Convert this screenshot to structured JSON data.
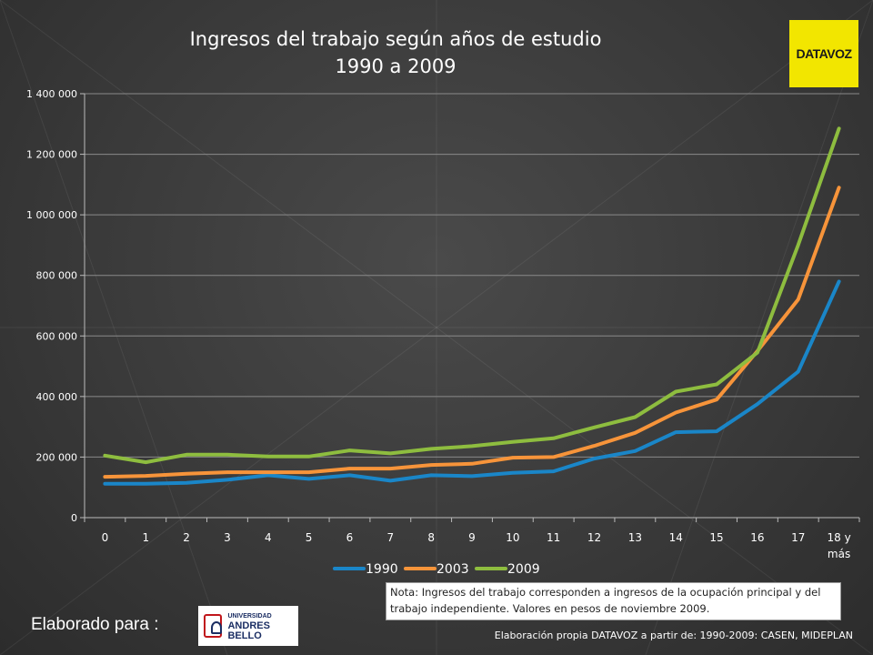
{
  "title": "Ingresos del trabajo según años de estudio",
  "subtitle": "1990 a 2009",
  "logo_text": "DATAVOZ",
  "note": "Nota: Ingresos del trabajo corresponden a ingresos de la ocupación principal y del trabajo independiente. Valores en pesos de noviembre 2009.",
  "made_for": "Elaborado para :",
  "university": {
    "line1": "UNIVERSIDAD",
    "line2": "ANDRES BELLO"
  },
  "source": "Elaboración propia DATAVOZ a partir de: 1990-2009: CASEN, MIDEPLAN",
  "chart_data": {
    "type": "line",
    "title": "Ingresos del trabajo según años de estudio",
    "subtitle": "1990 a 2009",
    "categories": [
      "0",
      "1",
      "2",
      "3",
      "4",
      "5",
      "6",
      "7",
      "8",
      "9",
      "10",
      "11",
      "12",
      "13",
      "14",
      "15",
      "16",
      "17",
      "18 y más"
    ],
    "y_ticks": [
      "0",
      "200 000",
      "400 000",
      "600 000",
      "800 000",
      "1 000 000",
      "1 200 000",
      "1 400 000"
    ],
    "ylim": [
      0,
      1400000
    ],
    "grid": true,
    "legend_position": "bottom",
    "series": [
      {
        "name": "1990",
        "color": "#1a86c8",
        "values": [
          112000,
          112000,
          115000,
          125000,
          140000,
          128000,
          140000,
          122000,
          140000,
          137000,
          148000,
          153000,
          195000,
          220000,
          282000,
          285000,
          375000,
          482000,
          780000
        ]
      },
      {
        "name": "2003",
        "color": "#f7943a",
        "values": [
          135000,
          138000,
          145000,
          150000,
          150000,
          150000,
          162000,
          162000,
          174000,
          178000,
          198000,
          200000,
          237000,
          280000,
          347000,
          390000,
          550000,
          720000,
          1090000
        ]
      },
      {
        "name": "2009",
        "color": "#8ebd3f",
        "values": [
          205000,
          183000,
          208000,
          208000,
          202000,
          202000,
          222000,
          212000,
          227000,
          236000,
          250000,
          262000,
          298000,
          332000,
          416000,
          440000,
          545000,
          900000,
          1285000
        ]
      }
    ]
  }
}
